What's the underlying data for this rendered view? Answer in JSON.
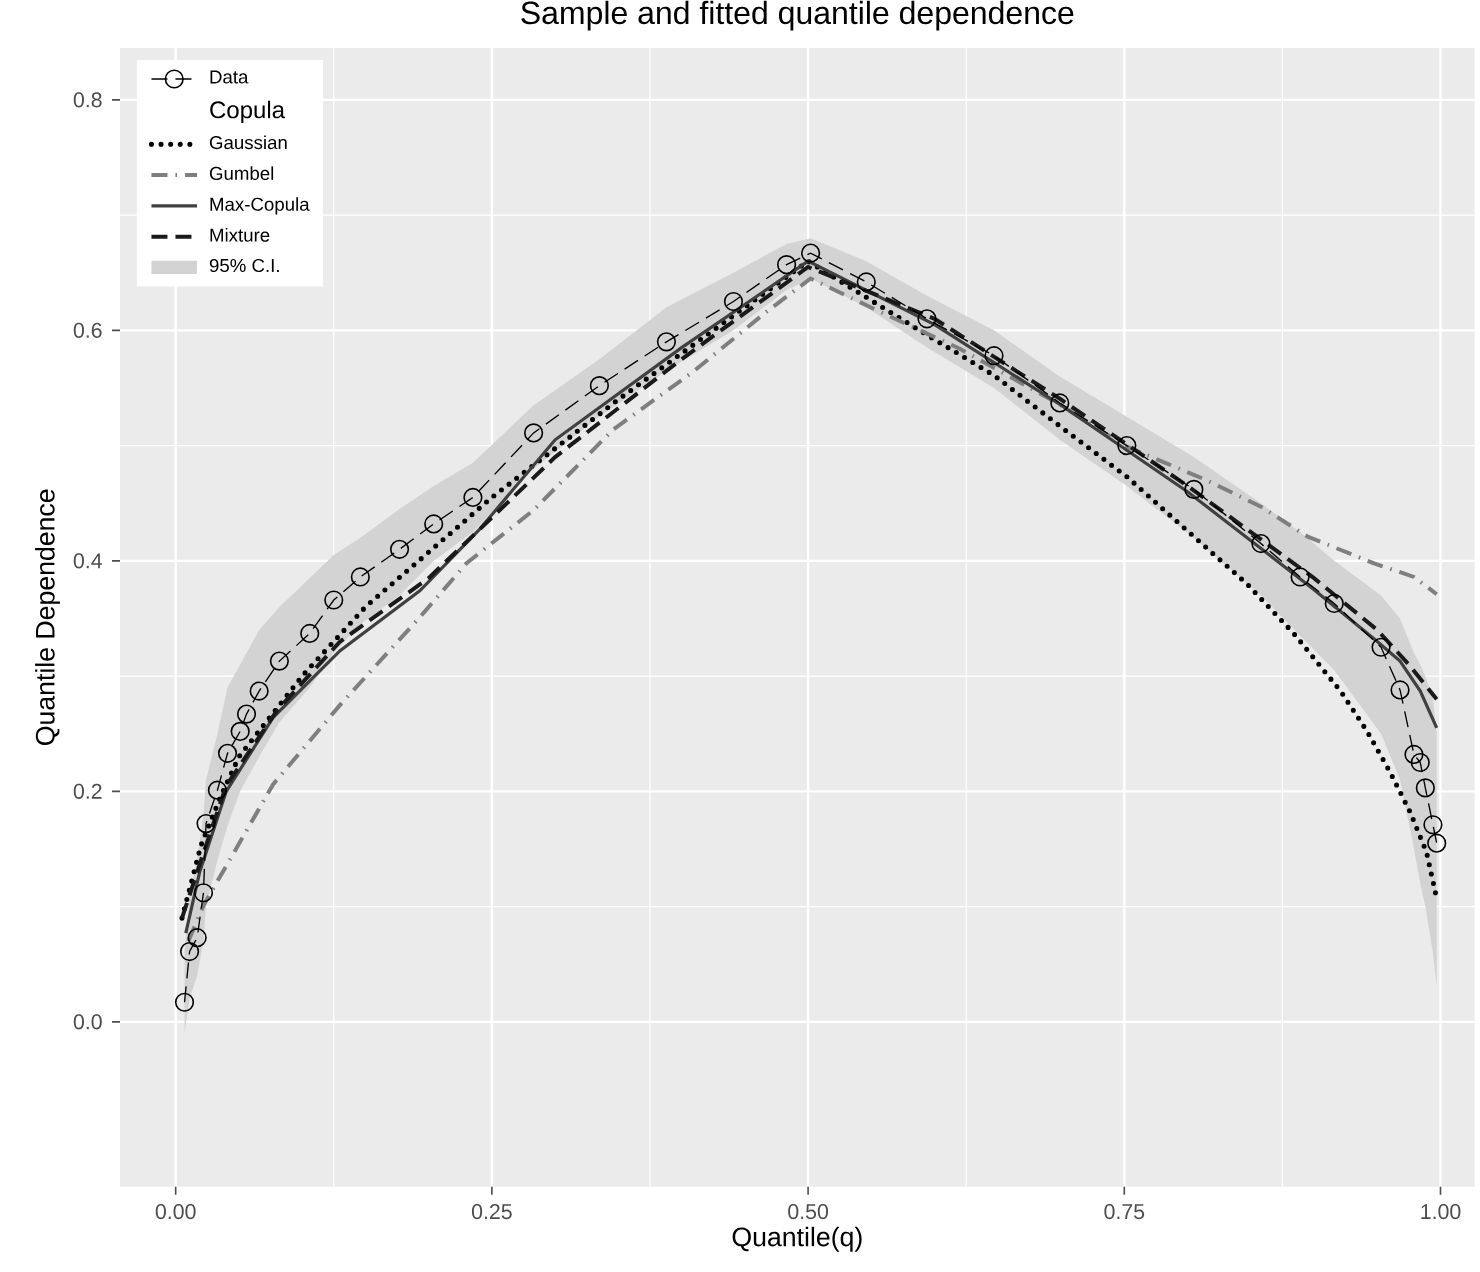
{
  "chart_data": {
    "type": "line",
    "title": "Sample and fitted quantile dependence",
    "xlabel": "Quantile(q)",
    "ylabel": "Quantile Dependence",
    "legend_title": "Copula",
    "annotations": [
      "95% C.I."
    ],
    "xlim": [
      -0.044,
      1.027
    ],
    "ylim": [
      -0.143,
      0.845
    ],
    "xticks": [
      {
        "value": 0,
        "label": "0.00"
      },
      {
        "value": 0.25,
        "label": "0.25"
      },
      {
        "value": 0.5,
        "label": "0.50"
      },
      {
        "value": 0.75,
        "label": "0.75"
      },
      {
        "value": 1,
        "label": "1.00"
      }
    ],
    "yticks": [
      {
        "value": 0,
        "label": "0.0"
      },
      {
        "value": 0.2,
        "label": "0.2"
      },
      {
        "value": 0.4,
        "label": "0.4"
      },
      {
        "value": 0.6,
        "label": "0.6"
      },
      {
        "value": 0.8,
        "label": "0.8"
      }
    ],
    "grid": true,
    "legend": "top left",
    "series": [
      {
        "name": "Data",
        "color": "#000000",
        "marker": "circle",
        "line_style": "dashed",
        "x": [
          0.007,
          0.011,
          0.017,
          0.022,
          0.024,
          0.033,
          0.041,
          0.051,
          0.056,
          0.066,
          0.082,
          0.106,
          0.125,
          0.146,
          0.177,
          0.204,
          0.235,
          0.283,
          0.335,
          0.388,
          0.441,
          0.483,
          0.502,
          0.546,
          0.594,
          0.647,
          0.699,
          0.752,
          0.805,
          0.858,
          0.889,
          0.916,
          0.953,
          0.968,
          0.979,
          0.984,
          0.988,
          0.994,
          0.997
        ],
        "values": [
          0.017,
          0.061,
          0.073,
          0.112,
          0.172,
          0.201,
          0.233,
          0.252,
          0.267,
          0.287,
          0.313,
          0.337,
          0.366,
          0.386,
          0.41,
          0.432,
          0.455,
          0.511,
          0.552,
          0.59,
          0.625,
          0.657,
          0.667,
          0.642,
          0.61,
          0.578,
          0.537,
          0.5,
          0.462,
          0.415,
          0.386,
          0.363,
          0.325,
          0.288,
          0.232,
          0.225,
          0.203,
          0.171,
          0.155
        ],
        "lower": [
          -0.01,
          0.02,
          0.04,
          0.07,
          0.1,
          0.14,
          0.17,
          0.2,
          0.21,
          0.23,
          0.26,
          0.29,
          0.32,
          0.345,
          0.37,
          0.4,
          0.425,
          0.48,
          0.525,
          0.565,
          0.6,
          0.635,
          0.645,
          0.62,
          0.585,
          0.55,
          0.505,
          0.465,
          0.42,
          0.37,
          0.335,
          0.305,
          0.25,
          0.21,
          0.15,
          0.12,
          0.1,
          0.06,
          0.03
        ],
        "upper": [
          0.06,
          0.11,
          0.14,
          0.18,
          0.21,
          0.25,
          0.29,
          0.31,
          0.32,
          0.34,
          0.36,
          0.385,
          0.405,
          0.42,
          0.445,
          0.465,
          0.485,
          0.535,
          0.575,
          0.62,
          0.65,
          0.675,
          0.68,
          0.66,
          0.63,
          0.6,
          0.56,
          0.525,
          0.49,
          0.45,
          0.425,
          0.4,
          0.37,
          0.35,
          0.32,
          0.31,
          0.3,
          0.28,
          0.25
        ]
      },
      {
        "name": "Gaussian",
        "color": "#000000",
        "marker": "none",
        "line_style": "dotted",
        "x": [
          0.005,
          0.02,
          0.035,
          0.05,
          0.1,
          0.15,
          0.25,
          0.35,
          0.45,
          0.5,
          0.594,
          0.647,
          0.699,
          0.752,
          0.805,
          0.847,
          0.884,
          0.921,
          0.942,
          0.96,
          0.976,
          0.989,
          0.997
        ],
        "values": [
          0.09,
          0.153,
          0.194,
          0.23,
          0.3,
          0.36,
          0.455,
          0.54,
          0.62,
          0.66,
          0.596,
          0.561,
          0.517,
          0.473,
          0.421,
          0.38,
          0.337,
          0.287,
          0.252,
          0.217,
          0.182,
          0.147,
          0.107
        ]
      },
      {
        "name": "Gumbel",
        "color": "#7f7f7f",
        "marker": "none",
        "line_style": "dashdot",
        "x": [
          0.01,
          0.022,
          0.043,
          0.077,
          0.13,
          0.193,
          0.23,
          0.283,
          0.346,
          0.409,
          0.467,
          0.502,
          0.557,
          0.62,
          0.7,
          0.75,
          0.815,
          0.858,
          0.895,
          0.947,
          0.979,
          0.997
        ],
        "values": [
          0.07,
          0.101,
          0.141,
          0.206,
          0.275,
          0.351,
          0.398,
          0.444,
          0.514,
          0.564,
          0.616,
          0.645,
          0.616,
          0.584,
          0.535,
          0.5,
          0.47,
          0.447,
          0.421,
          0.398,
          0.386,
          0.371
        ]
      },
      {
        "name": "Max-Copula",
        "color": "#404040",
        "marker": "none",
        "line_style": "solid",
        "x": [
          0.008,
          0.019,
          0.04,
          0.077,
          0.13,
          0.193,
          0.24,
          0.3,
          0.4,
          0.5,
          0.6,
          0.7,
          0.8,
          0.9,
          0.95,
          0.968,
          0.984,
          0.997
        ],
        "values": [
          0.077,
          0.13,
          0.2,
          0.264,
          0.322,
          0.374,
          0.427,
          0.505,
          0.585,
          0.66,
          0.605,
          0.535,
          0.46,
          0.375,
          0.33,
          0.313,
          0.287,
          0.255
        ]
      },
      {
        "name": "Mixture",
        "color": "#1a1a1a",
        "marker": "none",
        "line_style": "dashed",
        "x": [
          0.005,
          0.02,
          0.04,
          0.08,
          0.13,
          0.2,
          0.3,
          0.4,
          0.5,
          0.6,
          0.7,
          0.8,
          0.9,
          0.95,
          0.975,
          0.997
        ],
        "values": [
          0.09,
          0.14,
          0.205,
          0.27,
          0.33,
          0.385,
          0.49,
          0.575,
          0.655,
          0.61,
          0.54,
          0.465,
          0.385,
          0.34,
          0.31,
          0.28
        ]
      }
    ]
  }
}
